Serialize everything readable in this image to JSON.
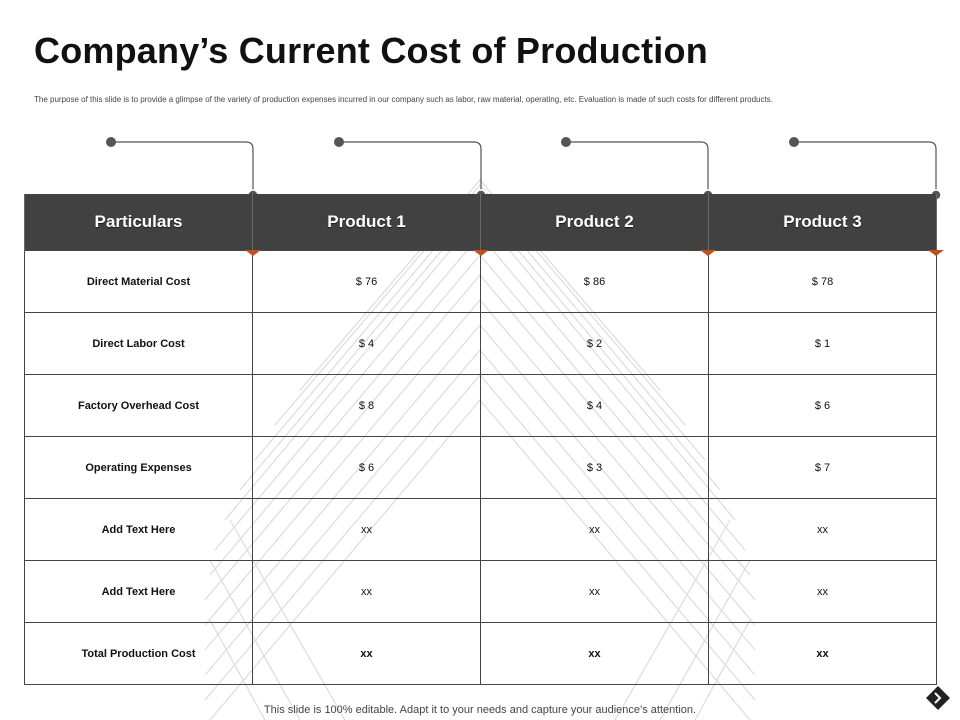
{
  "slide": {
    "title": "Company’s Current Cost of Production",
    "subtitle": "The purpose of this slide is to provide a glimpse of the variety of production expenses incurred in our company such as labor, raw material, operating, etc. Evaluation is made of such costs for different products.",
    "footer": "This slide is 100% editable. Adapt it to your needs and capture your audience’s attention."
  },
  "table": {
    "headers": [
      "Particulars",
      "Product 1",
      "Product 2",
      "Product 3"
    ],
    "rows": [
      {
        "label": "Direct Material Cost",
        "values": [
          "$ 76",
          "$ 86",
          "$ 78"
        ]
      },
      {
        "label": "Direct Labor Cost",
        "values": [
          "$ 4",
          "$ 2",
          "$ 1"
        ]
      },
      {
        "label": "Factory Overhead Cost",
        "values": [
          "$ 8",
          "$ 4",
          "$ 6"
        ]
      },
      {
        "label": "Operating Expenses",
        "values": [
          "$ 6",
          "$ 3",
          "$ 7"
        ]
      },
      {
        "label": "Add Text Here",
        "values": [
          "xx",
          "xx",
          "xx"
        ]
      },
      {
        "label": "Add Text Here",
        "values": [
          "xx",
          "xx",
          "xx"
        ]
      },
      {
        "label": "Total Production Cost",
        "values": [
          "xx",
          "xx",
          "xx"
        ]
      }
    ]
  },
  "colors": {
    "header_bg": "#414141",
    "accent": "#c0501f",
    "connector": "#555555"
  }
}
